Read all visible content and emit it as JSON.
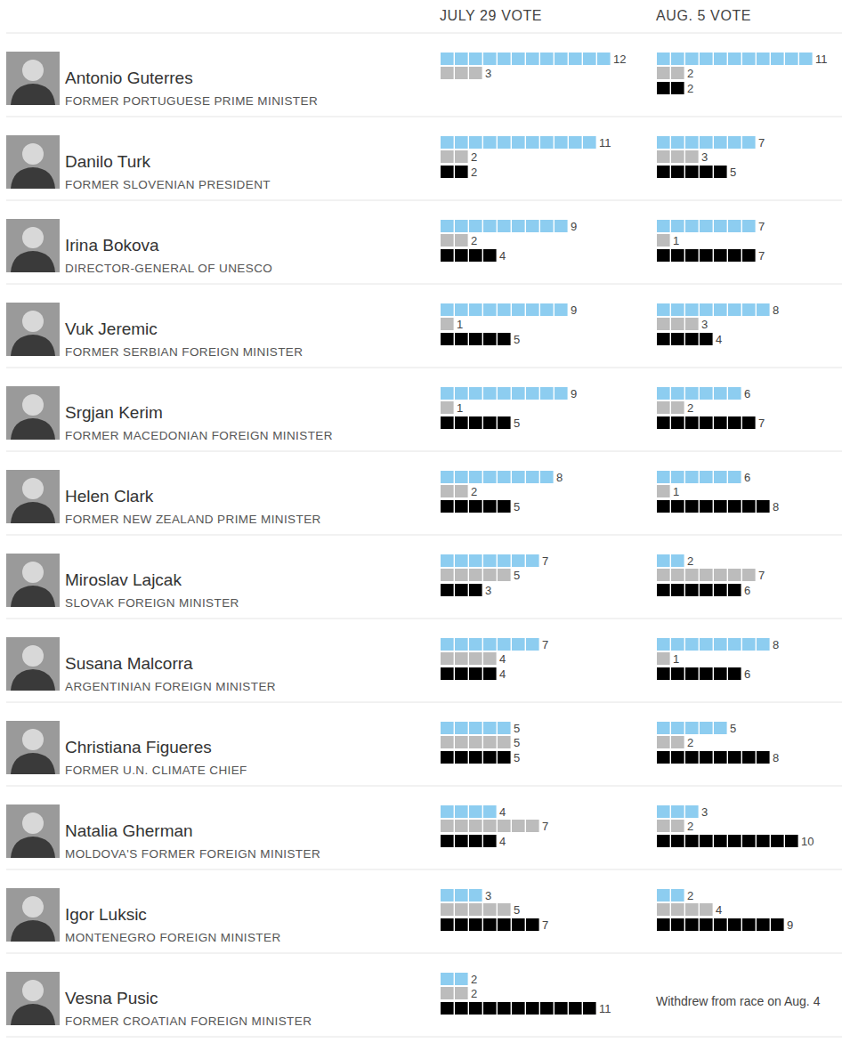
{
  "chart_data": {
    "type": "bar",
    "orientation": "horizontal",
    "data_labels": true,
    "tick_labels": false,
    "xlim": [
      0,
      12
    ],
    "colors": [
      "#8dcdf0",
      "#bcbcbc",
      "#000000"
    ],
    "columns": [
      "JULY 29 VOTE",
      "AUG. 5 VOTE"
    ],
    "rows": [
      {
        "name": "Antonio Guterres",
        "title": "FORMER PORTUGUESE PRIME MINISTER",
        "votes": [
          {
            "values": [
              12,
              3,
              null
            ]
          },
          {
            "values": [
              11,
              2,
              2
            ]
          }
        ]
      },
      {
        "name": "Danilo Turk",
        "title": "FORMER SLOVENIAN PRESIDENT",
        "votes": [
          {
            "values": [
              11,
              2,
              2
            ]
          },
          {
            "values": [
              7,
              3,
              5
            ]
          }
        ]
      },
      {
        "name": "Irina Bokova",
        "title": "DIRECTOR-GENERAL OF UNESCO",
        "votes": [
          {
            "values": [
              9,
              2,
              4
            ]
          },
          {
            "values": [
              7,
              1,
              7
            ]
          }
        ]
      },
      {
        "name": "Vuk Jeremic",
        "title": "FORMER SERBIAN FOREIGN MINISTER",
        "votes": [
          {
            "values": [
              9,
              1,
              5
            ]
          },
          {
            "values": [
              8,
              3,
              4
            ]
          }
        ]
      },
      {
        "name": "Srgjan Kerim",
        "title": "FORMER MACEDONIAN FOREIGN MINISTER",
        "votes": [
          {
            "values": [
              9,
              1,
              5
            ]
          },
          {
            "values": [
              6,
              2,
              7
            ]
          }
        ]
      },
      {
        "name": "Helen Clark",
        "title": "FORMER NEW ZEALAND PRIME MINISTER",
        "votes": [
          {
            "values": [
              8,
              2,
              5
            ]
          },
          {
            "values": [
              6,
              1,
              8
            ]
          }
        ]
      },
      {
        "name": "Miroslav Lajcak",
        "title": "SLOVAK FOREIGN MINISTER",
        "votes": [
          {
            "values": [
              7,
              5,
              3
            ]
          },
          {
            "values": [
              2,
              7,
              6
            ]
          }
        ]
      },
      {
        "name": "Susana Malcorra",
        "title": "ARGENTINIAN FOREIGN MINISTER",
        "votes": [
          {
            "values": [
              7,
              4,
              4
            ]
          },
          {
            "values": [
              8,
              1,
              6
            ]
          }
        ]
      },
      {
        "name": "Christiana Figueres",
        "title": "FORMER U.N. CLIMATE CHIEF",
        "votes": [
          {
            "values": [
              5,
              5,
              5
            ]
          },
          {
            "values": [
              5,
              2,
              8
            ]
          }
        ]
      },
      {
        "name": "Natalia Gherman",
        "title": "MOLDOVA'S FORMER FOREIGN MINISTER",
        "votes": [
          {
            "values": [
              4,
              7,
              4
            ]
          },
          {
            "values": [
              3,
              2,
              10
            ]
          }
        ]
      },
      {
        "name": "Igor Luksic",
        "title": "MONTENEGRO FOREIGN MINISTER",
        "votes": [
          {
            "values": [
              3,
              5,
              7
            ]
          },
          {
            "values": [
              2,
              4,
              9
            ]
          }
        ]
      },
      {
        "name": "Vesna Pusic",
        "title": "FORMER CROATIAN FOREIGN MINISTER",
        "votes": [
          {
            "values": [
              2,
              2,
              11
            ]
          },
          {
            "note": "Withdrew from race on Aug. 4"
          }
        ]
      }
    ]
  }
}
